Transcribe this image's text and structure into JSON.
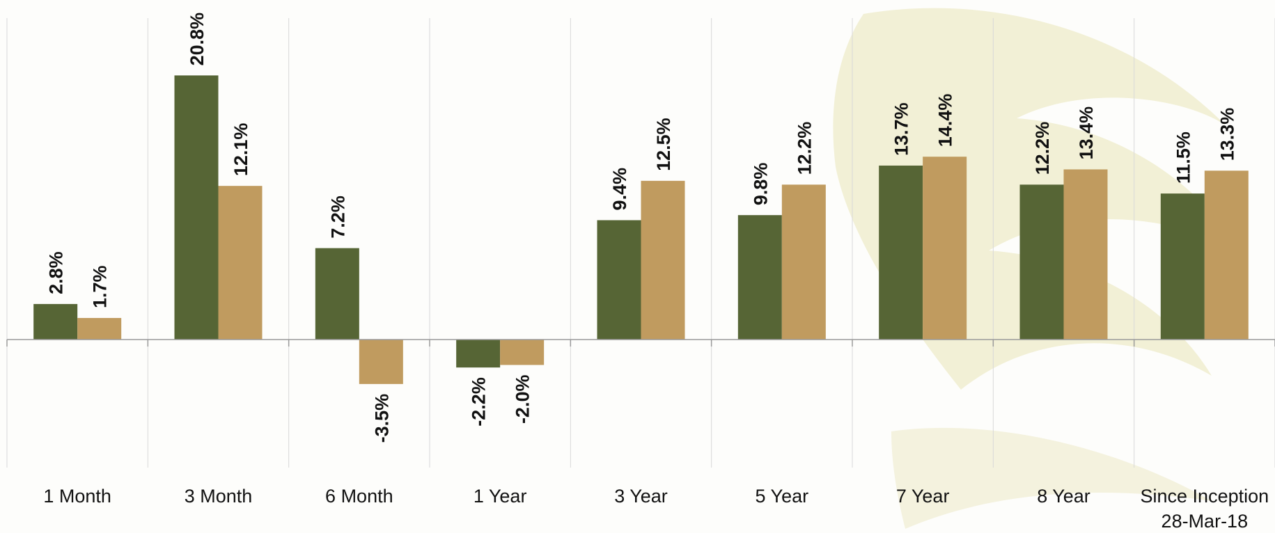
{
  "chart_data": {
    "type": "bar",
    "categories": [
      "1 Month",
      "3 Month",
      "6 Month",
      "1 Year",
      "3 Year",
      "5 Year",
      "7 Year",
      "8 Year",
      "Since Inception"
    ],
    "category_sublabels": [
      "",
      "",
      "",
      "",
      "",
      "",
      "",
      "",
      "28-Mar-18"
    ],
    "series": [
      {
        "values": [
          2.8,
          20.8,
          7.2,
          -2.2,
          9.4,
          9.8,
          13.7,
          12.2,
          11.5
        ],
        "color": "#566535"
      },
      {
        "values": [
          1.7,
          12.1,
          -3.5,
          -2.0,
          12.5,
          12.2,
          14.4,
          13.4,
          13.3
        ],
        "color": "#c09b5f"
      }
    ],
    "data_labels": [
      [
        "2.8%",
        "20.8%",
        "7.2%",
        "-2.2%",
        "9.4%",
        "9.8%",
        "13.7%",
        "12.2%",
        "11.5%"
      ],
      [
        "1.7%",
        "12.1%",
        "-3.5%",
        "-2.0%",
        "12.5%",
        "12.2%",
        "14.4%",
        "13.4%",
        "13.3%"
      ]
    ],
    "ylim": [
      -10,
      25
    ],
    "grid": "vertical category separators",
    "legend": "none",
    "colors": {
      "background": "#fdfdfb",
      "watermark": "#f1efd2",
      "axis": "#9a9a9a",
      "gridline": "#d8d8d8"
    }
  }
}
